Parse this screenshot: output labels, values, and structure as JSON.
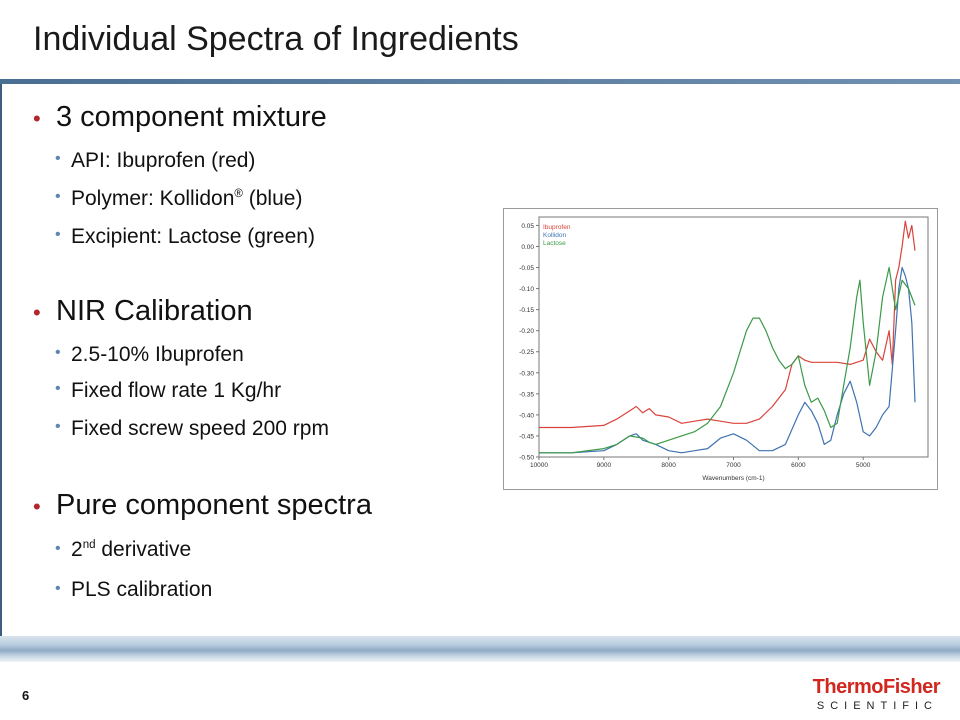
{
  "slide": {
    "title": "Individual Spectra of Ingredients",
    "page_number": "6"
  },
  "bullets": {
    "s1": {
      "heading": "3 component mixture",
      "items": [
        "API: Ibuprofen (red)",
        "Polymer: Kollidon",
        "®",
        " (blue)",
        "Excipient: Lactose (green)"
      ]
    },
    "s2": {
      "heading": "NIR Calibration",
      "items": [
        "2.5-10% Ibuprofen",
        "Fixed flow rate 1 Kg/hr",
        "Fixed screw speed 200 rpm"
      ]
    },
    "s3": {
      "heading": "Pure component spectra",
      "deriv_num": "2",
      "deriv_sup": "nd",
      "deriv_rest": " derivative",
      "pls": "PLS calibration"
    }
  },
  "logo": {
    "top": "ThermoFisher",
    "bottom": "SCIENTIFIC",
    "color": "#d1271f"
  },
  "chart_data": {
    "type": "line",
    "xlabel": "Wavenumbers (cm-1)",
    "ylabel": "",
    "x_reversed": true,
    "xlim": [
      10000,
      4000
    ],
    "ylim": [
      -0.5,
      0.07
    ],
    "x_ticks": [
      {
        "value": 10000,
        "label": "10000"
      },
      {
        "value": 9000,
        "label": "9000"
      },
      {
        "value": 8000,
        "label": "8000"
      },
      {
        "value": 7000,
        "label": "7000"
      },
      {
        "value": 6000,
        "label": "6000"
      },
      {
        "value": 5000,
        "label": "5000"
      }
    ],
    "y_ticks": [
      {
        "value": 0.05,
        "label": "0.05"
      },
      {
        "value": 0.0,
        "label": "0.00"
      },
      {
        "value": -0.05,
        "label": "-0.05"
      },
      {
        "value": -0.1,
        "label": "-0.10"
      },
      {
        "value": -0.15,
        "label": "-0.15"
      },
      {
        "value": -0.2,
        "label": "-0.20"
      },
      {
        "value": -0.25,
        "label": "-0.25"
      },
      {
        "value": -0.3,
        "label": "-0.30"
      },
      {
        "value": -0.35,
        "label": "-0.35"
      },
      {
        "value": -0.4,
        "label": "-0.40"
      },
      {
        "value": -0.45,
        "label": "-0.45"
      },
      {
        "value": -0.5,
        "label": "-0.50"
      }
    ],
    "legend_position": "top-left",
    "series": [
      {
        "name": "Ibuprofen",
        "color": "#d9433b",
        "x": [
          10000,
          9500,
          9000,
          8800,
          8600,
          8500,
          8400,
          8300,
          8200,
          8000,
          7800,
          7600,
          7400,
          7200,
          7000,
          6800,
          6600,
          6400,
          6200,
          6100,
          6000,
          5900,
          5800,
          5600,
          5400,
          5200,
          5000,
          4900,
          4800,
          4700,
          4600,
          4550,
          4500,
          4450,
          4400,
          4350,
          4300,
          4250,
          4200
        ],
        "y": [
          -0.43,
          -0.43,
          -0.425,
          -0.41,
          -0.39,
          -0.38,
          -0.395,
          -0.385,
          -0.4,
          -0.405,
          -0.42,
          -0.415,
          -0.41,
          -0.415,
          -0.42,
          -0.42,
          -0.41,
          -0.38,
          -0.34,
          -0.28,
          -0.26,
          -0.27,
          -0.275,
          -0.275,
          -0.275,
          -0.28,
          -0.27,
          -0.22,
          -0.25,
          -0.27,
          -0.2,
          -0.28,
          -0.08,
          -0.05,
          0.0,
          0.06,
          0.02,
          0.05,
          -0.01
        ]
      },
      {
        "name": "Kollidon",
        "color": "#3f72b0",
        "x": [
          10000,
          9500,
          9000,
          8800,
          8600,
          8500,
          8400,
          8200,
          8000,
          7800,
          7600,
          7400,
          7200,
          7000,
          6800,
          6600,
          6400,
          6200,
          6000,
          5900,
          5800,
          5700,
          5600,
          5500,
          5400,
          5300,
          5200,
          5100,
          5000,
          4900,
          4800,
          4700,
          4600,
          4500,
          4450,
          4400,
          4350,
          4300,
          4250,
          4200
        ],
        "y": [
          -0.49,
          -0.49,
          -0.485,
          -0.47,
          -0.45,
          -0.445,
          -0.46,
          -0.47,
          -0.485,
          -0.49,
          -0.485,
          -0.48,
          -0.455,
          -0.445,
          -0.46,
          -0.485,
          -0.485,
          -0.47,
          -0.4,
          -0.37,
          -0.39,
          -0.42,
          -0.47,
          -0.46,
          -0.4,
          -0.35,
          -0.32,
          -0.37,
          -0.44,
          -0.45,
          -0.43,
          -0.4,
          -0.38,
          -0.2,
          -0.1,
          -0.05,
          -0.07,
          -0.1,
          -0.18,
          -0.37
        ]
      },
      {
        "name": "Lactose",
        "color": "#3b9a47",
        "x": [
          10000,
          9500,
          9000,
          8800,
          8600,
          8400,
          8300,
          8200,
          8000,
          7800,
          7600,
          7400,
          7200,
          7000,
          6900,
          6800,
          6700,
          6600,
          6500,
          6400,
          6300,
          6200,
          6100,
          6000,
          5900,
          5800,
          5700,
          5600,
          5500,
          5400,
          5300,
          5200,
          5100,
          5050,
          5000,
          4900,
          4800,
          4700,
          4600,
          4500,
          4400,
          4300,
          4200
        ],
        "y": [
          -0.49,
          -0.49,
          -0.48,
          -0.47,
          -0.45,
          -0.455,
          -0.465,
          -0.47,
          -0.46,
          -0.45,
          -0.44,
          -0.42,
          -0.38,
          -0.3,
          -0.25,
          -0.2,
          -0.17,
          -0.17,
          -0.2,
          -0.24,
          -0.27,
          -0.29,
          -0.28,
          -0.26,
          -0.33,
          -0.37,
          -0.36,
          -0.39,
          -0.43,
          -0.42,
          -0.33,
          -0.24,
          -0.12,
          -0.08,
          -0.18,
          -0.33,
          -0.25,
          -0.12,
          -0.05,
          -0.15,
          -0.08,
          -0.1,
          -0.14
        ]
      }
    ]
  }
}
